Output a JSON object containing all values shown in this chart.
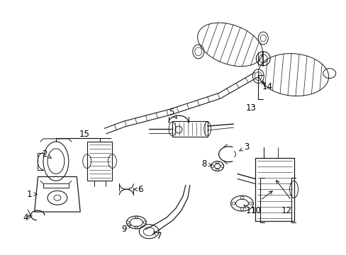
{
  "background_color": "#ffffff",
  "fig_width": 4.89,
  "fig_height": 3.6,
  "dpi": 100,
  "line_color": "#1a1a1a",
  "text_color": "#000000",
  "font_size": 8.5
}
